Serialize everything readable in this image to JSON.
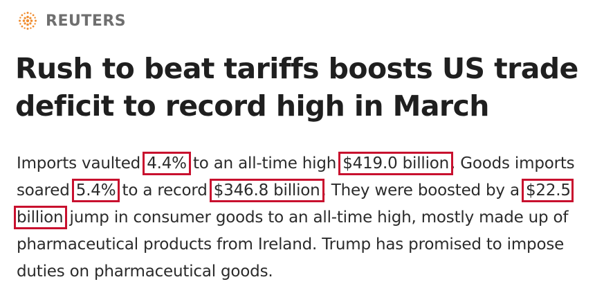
{
  "brand": {
    "name": "REUTERS",
    "logo_icon": "reuters-dot-circle-logo",
    "logo_color": "#f08c2e"
  },
  "headline": "Rush to beat tariffs boosts US trade deficit to record high in March",
  "body": {
    "seg1": "Imports vaulted ",
    "hl1": "4.4%",
    "seg2": " to an all-time high ",
    "hl2": "$419.0 billion",
    "seg3": ". Goods imports soared ",
    "hl3": "5.4%",
    "seg4": " to a record ",
    "hl4": "$346.8 billion",
    "seg5": ". They were boosted by a ",
    "hl5": "$22.5 billion",
    "seg6": " jump in consumer goods to an all-time high, mostly made up of pharmaceutical products from Ireland. Trump has promised to impose duties on pharmaceutical goods."
  },
  "colors": {
    "highlight_border": "#c8102e",
    "headline": "#1f1f1f",
    "brand_text": "#6f6f6f"
  }
}
